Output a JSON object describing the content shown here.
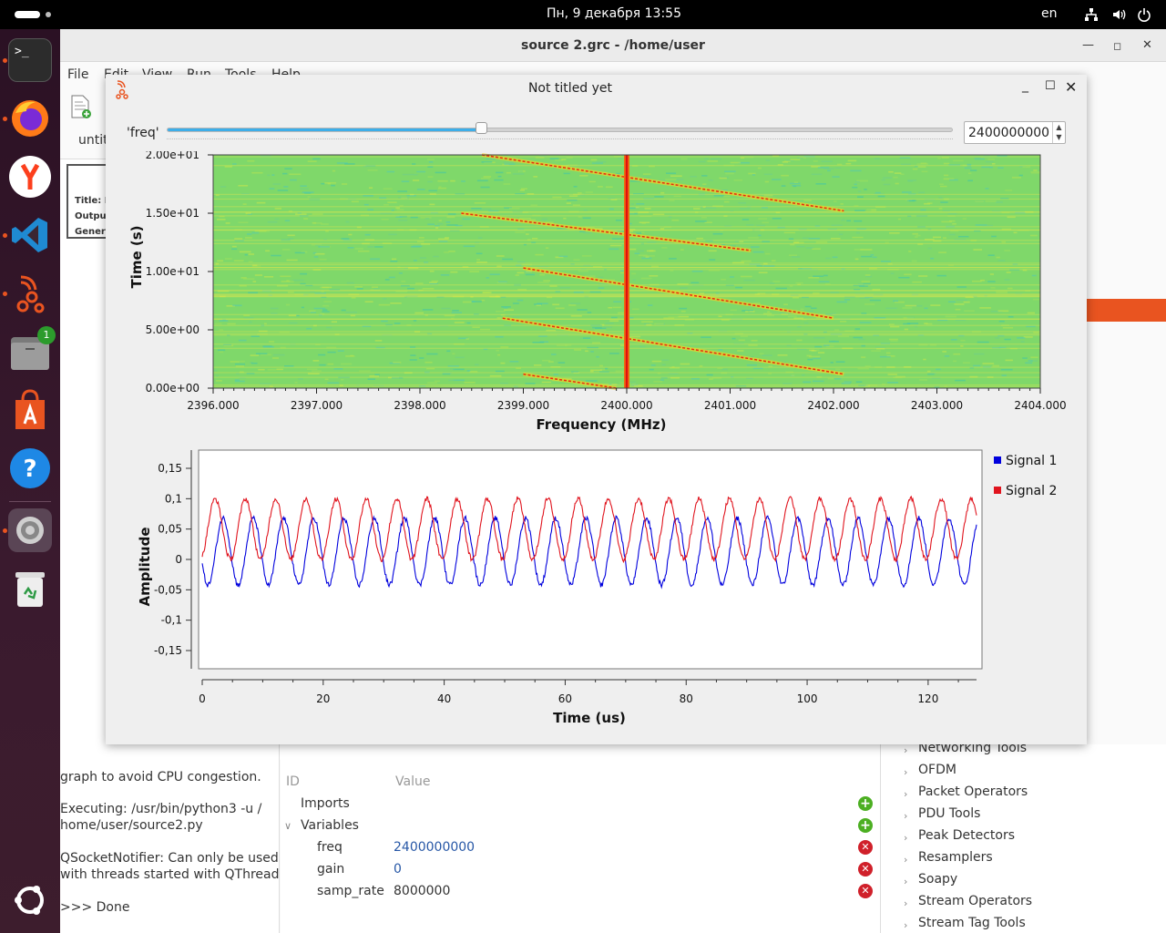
{
  "topbar": {
    "clock": "Пн, 9 декабря  13:55",
    "lang": "en",
    "tray_icons": [
      "network-icon",
      "volume-icon",
      "power-icon"
    ]
  },
  "dock": {
    "items": [
      {
        "name": "terminal",
        "icon": "terminal-icon",
        "running": true
      },
      {
        "name": "firefox",
        "icon": "firefox-icon",
        "running": true
      },
      {
        "name": "yandex-browser",
        "icon": "yandex-icon",
        "running": false
      },
      {
        "name": "vscode",
        "icon": "vscode-icon",
        "running": true
      },
      {
        "name": "gnuradio-companion",
        "icon": "gnuradio-icon",
        "running": true
      },
      {
        "name": "files",
        "icon": "files-icon",
        "running": false,
        "badge": "1"
      },
      {
        "name": "app-center",
        "icon": "appcenter-icon",
        "running": false
      },
      {
        "name": "help",
        "icon": "help-icon",
        "running": false
      },
      {
        "name": "settings",
        "icon": "settings-icon",
        "running": true
      },
      {
        "name": "trash",
        "icon": "trash-icon",
        "running": false
      }
    ],
    "show_apps_icon": "ubuntu-icon"
  },
  "grc_window": {
    "title": "source 2.grc - /home/user",
    "menu": [
      "File",
      "Edit",
      "View",
      "Run",
      "Tools",
      "Help"
    ],
    "tab_label": "untit",
    "options_block": [
      "Title: N",
      "Output",
      "Genera"
    ],
    "console_lines": [
      "graph to avoid CPU congestion.",
      "",
      "Executing: /usr/bin/python3 -u /",
      "home/user/source2.py",
      "",
      "QSocketNotifier: Can only be used",
      "with threads started with QThread",
      "",
      ">>> Done"
    ],
    "variables_panel": {
      "col_id": "ID",
      "col_value": "Value",
      "imports_label": "Imports",
      "variables_label": "Variables",
      "rows": [
        {
          "id": "freq",
          "value": "2400000000"
        },
        {
          "id": "gain",
          "value": "0"
        },
        {
          "id": "samp_rate",
          "value": "8000000"
        }
      ]
    },
    "block_categories": [
      "Networking Tools",
      "OFDM",
      "Packet Operators",
      "PDU Tools",
      "Peak Detectors",
      "Resamplers",
      "Soapy",
      "Stream Operators",
      "Stream Tag Tools"
    ]
  },
  "qt_window": {
    "title": "Not titled yet",
    "slider": {
      "label": "'freq'",
      "value": "2400000000",
      "position_fraction": 0.4
    },
    "colors": {
      "accent": "#3daee9",
      "signal1": "#0000dd",
      "signal2": "#e0141e"
    }
  },
  "chart_data": [
    {
      "type": "heatmap",
      "title": "",
      "xlabel": "Frequency (MHz)",
      "ylabel": "Time (s)",
      "xlim": [
        2396.0,
        2404.0
      ],
      "ylim": [
        0.0,
        20.0
      ],
      "x_ticks": [
        "2396.000",
        "2397.000",
        "2398.000",
        "2399.000",
        "2400.000",
        "2401.000",
        "2402.000",
        "2403.000",
        "2404.000"
      ],
      "y_ticks": [
        "0.00e+00",
        "5.00e+00",
        "1.00e+01",
        "1.50e+01",
        "2.00e+01"
      ],
      "features": {
        "constant_carrier_mhz": 2400.0,
        "sweeps": [
          {
            "f_start": 2398.6,
            "t_start": 20.0,
            "f_end": 2402.1,
            "t_end": 15.2
          },
          {
            "f_start": 2398.4,
            "t_start": 15.0,
            "f_end": 2401.2,
            "t_end": 11.8
          },
          {
            "f_start": 2399.0,
            "t_start": 10.3,
            "f_end": 2402.0,
            "t_end": 6.0
          },
          {
            "f_start": 2398.8,
            "t_start": 6.0,
            "f_end": 2402.1,
            "t_end": 1.2
          },
          {
            "f_start": 2399.0,
            "t_start": 1.2,
            "f_end": 2399.9,
            "t_end": 0.0
          }
        ]
      }
    },
    {
      "type": "line",
      "title": "",
      "xlabel": "Time (us)",
      "ylabel": "Amplitude",
      "xlim": [
        0,
        128
      ],
      "ylim": [
        -0.18,
        0.18
      ],
      "x_ticks": [
        "0",
        "20",
        "40",
        "60",
        "80",
        "100",
        "120"
      ],
      "y_ticks": [
        "0,15",
        "0,1",
        "0,05",
        "0",
        "-0,05",
        "-0,1",
        "-0,15"
      ],
      "legend_position": "right",
      "series": [
        {
          "name": "Signal 1",
          "amplitude": 0.055,
          "offset": 0.013,
          "period_us": 5.0,
          "phase_us": 2.2
        },
        {
          "name": "Signal 2",
          "amplitude": 0.05,
          "offset": 0.05,
          "period_us": 5.0,
          "phase_us": 0.9
        }
      ]
    }
  ]
}
